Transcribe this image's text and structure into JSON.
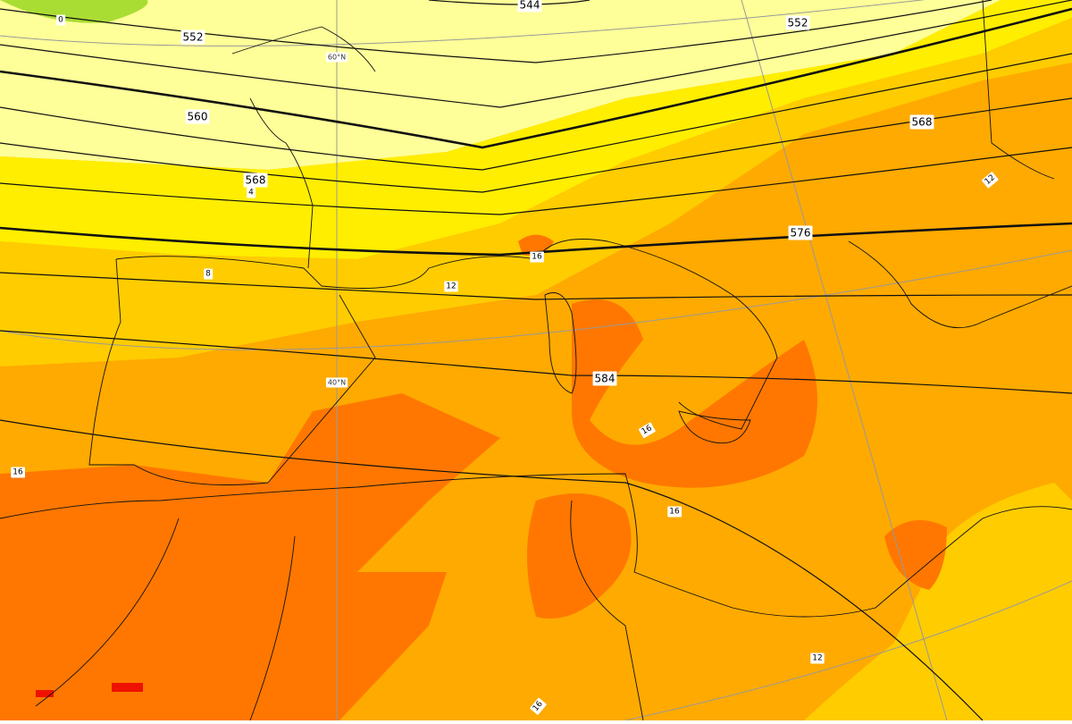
{
  "map": {
    "contour_labels": [
      "544",
      "552",
      "552",
      "560",
      "568",
      "568",
      "576",
      "584"
    ],
    "temperature_labels": [
      "0",
      "4",
      "8",
      "12",
      "16",
      "12",
      "16",
      "16",
      "16",
      "12",
      "16"
    ],
    "latitude_labels": [
      "60°N",
      "40°N"
    ]
  }
}
